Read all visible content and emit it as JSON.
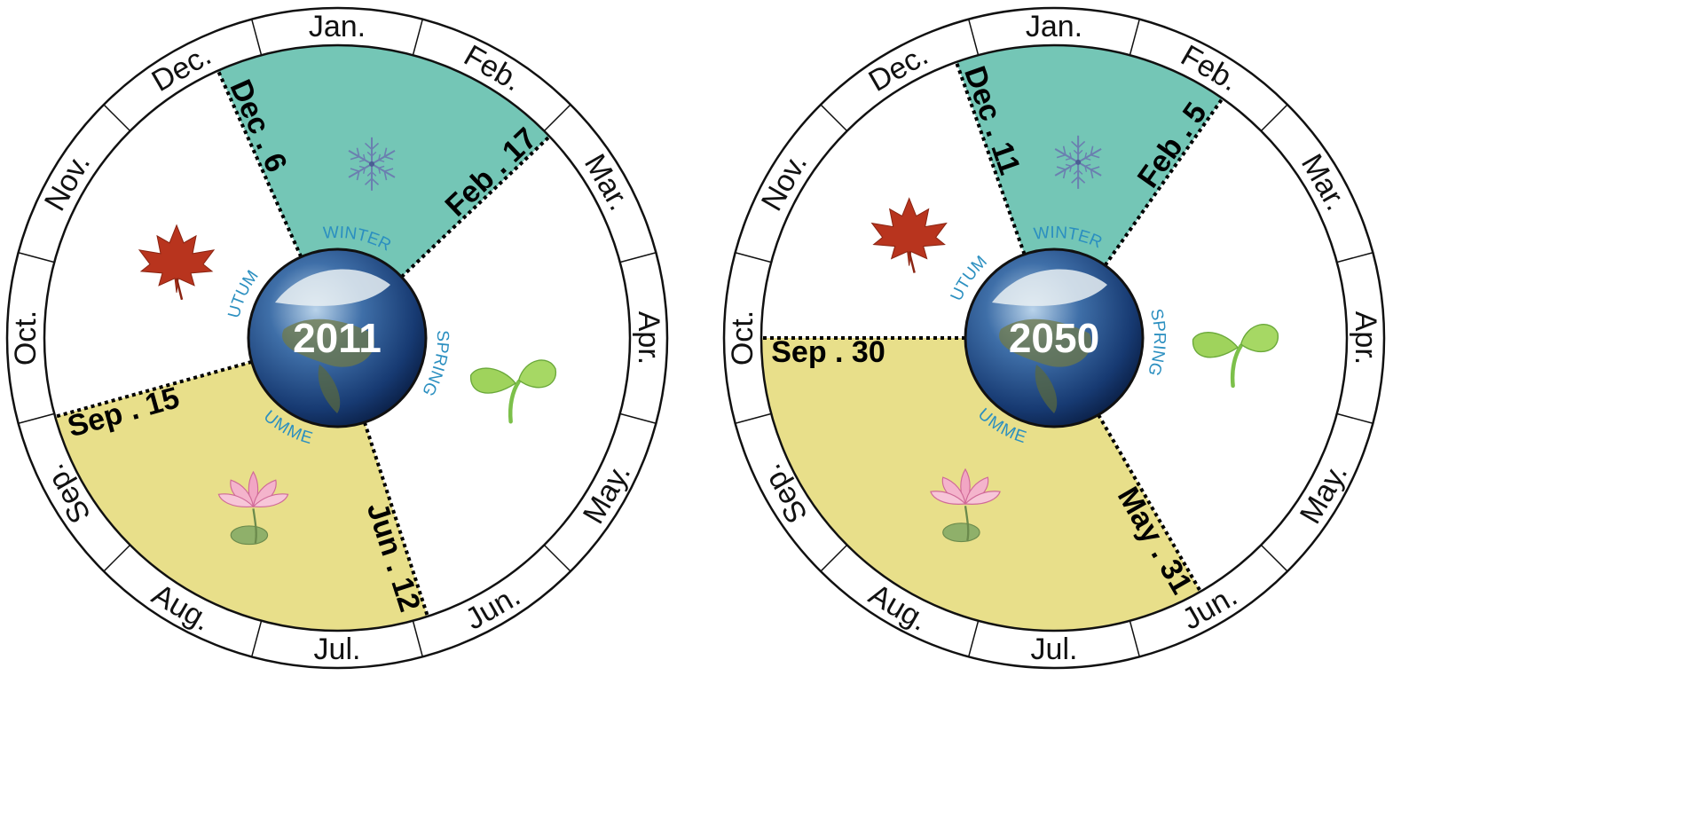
{
  "months": [
    "Jan.",
    "Feb.",
    "Mar.",
    "Apr.",
    "May.",
    "Jun.",
    "Jul.",
    "Aug.",
    "Sep.",
    "Oct.",
    "Nov.",
    "Dec."
  ],
  "season_labels": {
    "winter": "WINTER",
    "spring": "SPRING",
    "summer": "SUMMER",
    "autumn": "AUTUMN"
  },
  "colors": {
    "winter": "#74c6b6",
    "summer": "#e8df8a",
    "spring": "#ffffff",
    "autumn": "#ffffff",
    "season_text": "#2b8fc0"
  },
  "icons": {
    "winter": "snowflake-icon",
    "spring": "sprout-icon",
    "summer": "lotus-icon",
    "autumn": "maple-leaf-icon",
    "center": "earth-globe-icon"
  },
  "wheels": [
    {
      "year": "2011",
      "boundaries": {
        "winter_start": {
          "label": "Dec . 6",
          "month_position": 11.2
        },
        "spring_start": {
          "label": "Feb . 17",
          "month_position": 1.55
        },
        "summer_start": {
          "label": "Jun . 12",
          "month_position": 5.4
        },
        "autumn_start": {
          "label": "Sep . 15",
          "month_position": 8.48
        }
      }
    },
    {
      "year": "2050",
      "boundaries": {
        "winter_start": {
          "label": "Dec . 11",
          "month_position": 11.35
        },
        "spring_start": {
          "label": "Feb . 5",
          "month_position": 1.17
        },
        "summer_start": {
          "label": "May . 31",
          "month_position": 5.0
        },
        "autumn_start": {
          "label": "Sep . 30",
          "month_position": 9.0
        }
      }
    }
  ]
}
